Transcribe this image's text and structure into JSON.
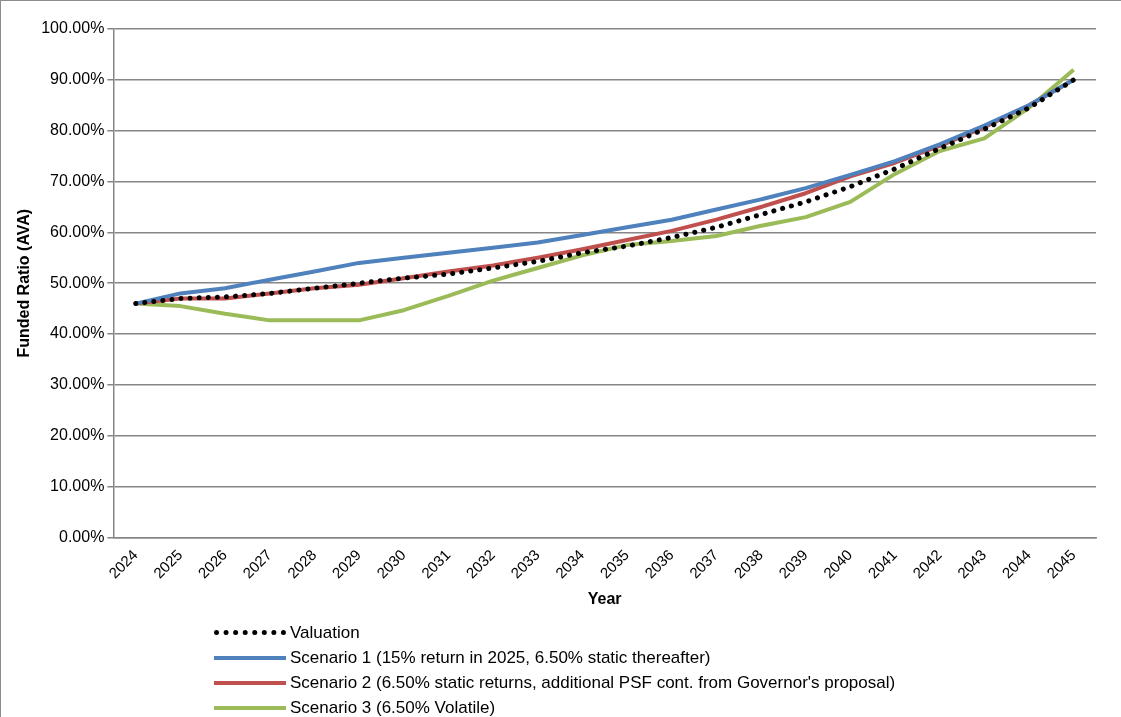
{
  "chart_data": {
    "type": "line",
    "xlabel": "Year",
    "ylabel": "Funded Ratio (AVA)",
    "categories": [
      "2024",
      "2025",
      "2026",
      "2027",
      "2028",
      "2029",
      "2030",
      "2031",
      "2032",
      "2033",
      "2034",
      "2035",
      "2036",
      "2037",
      "2038",
      "2039",
      "2040",
      "2041",
      "2042",
      "2043",
      "2044",
      "2045"
    ],
    "series": [
      {
        "name": "Valuation",
        "color": "#000000",
        "line_style": "dotted",
        "values": [
          46,
          47,
          47.3,
          48,
          49,
          50,
          51,
          51.8,
          53,
          54.3,
          56,
          57.3,
          59,
          61,
          63.5,
          66,
          69,
          72.5,
          76.5,
          80.3,
          84.5,
          90
        ]
      },
      {
        "name": "Scenario 1 (15% return in 2025, 6.50% static thereafter)",
        "color": "#4f81bd",
        "line_style": "solid",
        "values": [
          46,
          48,
          49,
          50.7,
          52.3,
          54,
          55,
          56,
          57,
          58,
          59.5,
          61,
          62.5,
          64.5,
          66.5,
          68.7,
          71.3,
          74,
          77.3,
          81,
          85,
          90
        ]
      },
      {
        "name": "Scenario 2 (6.50% static returns, additional PSF cont. from Governor's proposal)",
        "color": "#c0504d",
        "line_style": "solid",
        "values": [
          46,
          47,
          47,
          48,
          49,
          49.7,
          51,
          52.3,
          53.5,
          55,
          56.7,
          58.5,
          60.3,
          62.5,
          65,
          67.7,
          71,
          73.7,
          77,
          80.7,
          85,
          90
        ]
      },
      {
        "name": "Scenario 3 (6.50% Volatile)",
        "color": "#9bbb59",
        "line_style": "solid",
        "values": [
          46,
          45.5,
          44,
          42.7,
          42.7,
          42.7,
          44.7,
          47.5,
          50.5,
          53,
          55.5,
          57.5,
          58.3,
          59.3,
          61.3,
          63,
          66,
          71.5,
          76,
          78.5,
          84.5,
          92
        ]
      }
    ],
    "ylim": [
      0,
      100
    ],
    "yticks": [
      {
        "value": 0,
        "label": "0.00%"
      },
      {
        "value": 10,
        "label": "10.00%"
      },
      {
        "value": 20,
        "label": "20.00%"
      },
      {
        "value": 30,
        "label": "30.00%"
      },
      {
        "value": 40,
        "label": "40.00%"
      },
      {
        "value": 50,
        "label": "50.00%"
      },
      {
        "value": 60,
        "label": "60.00%"
      },
      {
        "value": 70,
        "label": "70.00%"
      },
      {
        "value": 80,
        "label": "80.00%"
      },
      {
        "value": 90,
        "label": "90.00%"
      },
      {
        "value": 100,
        "label": "100.00%"
      }
    ],
    "grid": "y",
    "legend": "bottom",
    "marker": "none"
  }
}
